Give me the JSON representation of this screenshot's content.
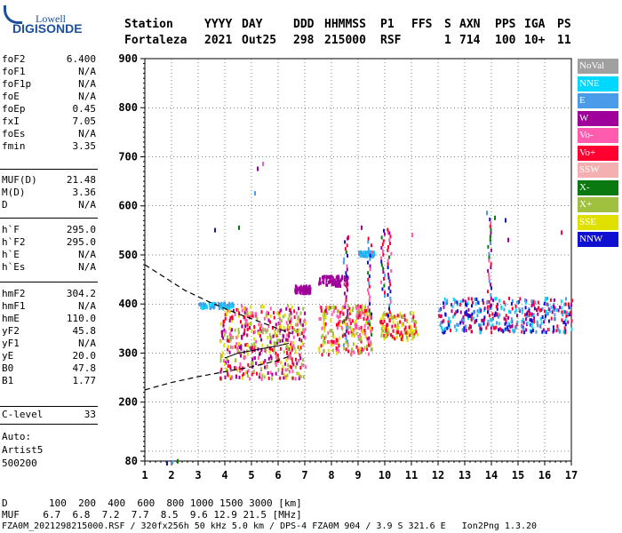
{
  "logo": {
    "top": "Lowell",
    "bottom": "DIGISONDE"
  },
  "header": {
    "labels": [
      "Station",
      "YYYY",
      "DAY",
      "DDD",
      "HHMMSS",
      "P1",
      "FFS",
      "S",
      "AXN",
      "PPS",
      "IGA",
      "PS"
    ],
    "values": [
      "Fortaleza",
      "2021",
      "Out25",
      "298",
      "215000",
      "RSF",
      "",
      "1",
      "714",
      "100",
      "10+",
      "11"
    ]
  },
  "params": [
    {
      "name": "foF2",
      "value": "6.400"
    },
    {
      "name": "foF1",
      "value": "N/A"
    },
    {
      "name": "foF1p",
      "value": "N/A"
    },
    {
      "name": "foE",
      "value": "N/A"
    },
    {
      "name": "foEp",
      "value": "0.45"
    },
    {
      "name": "fxI",
      "value": "7.05"
    },
    {
      "name": "foEs",
      "value": "N/A"
    },
    {
      "name": "fmin",
      "value": "3.35"
    },
    {
      "name": "MUF(D)",
      "value": "21.48"
    },
    {
      "name": "M(D)",
      "value": "3.36"
    },
    {
      "name": "D",
      "value": "N/A"
    },
    {
      "name": "h`F",
      "value": "295.0"
    },
    {
      "name": "h`F2",
      "value": "295.0"
    },
    {
      "name": "h`E",
      "value": "N/A"
    },
    {
      "name": "h`Es",
      "value": "N/A"
    },
    {
      "name": "hmF2",
      "value": "304.2"
    },
    {
      "name": "hmF1",
      "value": "N/A"
    },
    {
      "name": "hmE",
      "value": "110.0"
    },
    {
      "name": "yF2",
      "value": "45.8"
    },
    {
      "name": "yF1",
      "value": "N/A"
    },
    {
      "name": "yE",
      "value": "20.0"
    },
    {
      "name": "B0",
      "value": "47.8"
    },
    {
      "name": "B1",
      "value": "1.77"
    },
    {
      "name": "C-level",
      "value": "33"
    }
  ],
  "auto": {
    "line1": "Auto:",
    "line2": "Artist5",
    "line3": "500200"
  },
  "legend": [
    {
      "label": "NoVal",
      "color": "#a0a0a0"
    },
    {
      "label": "NNE",
      "color": "#00d8ff"
    },
    {
      "label": "E",
      "color": "#4a9be8"
    },
    {
      "label": "W",
      "color": "#a0009a"
    },
    {
      "label": "Vo-",
      "color": "#ff5cb0"
    },
    {
      "label": "Vo+",
      "color": "#ff0030"
    },
    {
      "label": "SSW",
      "color": "#f4b0b0"
    },
    {
      "label": "X-",
      "color": "#0a7a10"
    },
    {
      "label": "X+",
      "color": "#a0c040"
    },
    {
      "label": "SSE",
      "color": "#e0e000"
    },
    {
      "label": "NNW",
      "color": "#1010d0"
    }
  ],
  "footer": {
    "line1": "D       100  200  400  600  800 1000 1500 3000 [km]",
    "line2": "MUF    6.7  6.8  7.2  7.7  8.5  9.6 12.9 21.5 [MHz]",
    "line3": "FZA0M_2021298215000.RSF / 320fx256h 50 kHz 5.0 km / DPS-4 FZA0M 904 / 3.9 S 321.6 E   Ion2Png 1.3.20"
  },
  "chart_data": {
    "type": "scatter",
    "xlim": [
      1,
      17
    ],
    "ylim": [
      80,
      900
    ],
    "x_ticks": [
      "1",
      "2",
      "3",
      "4",
      "5",
      "6",
      "7",
      "8",
      "9",
      "10",
      "11",
      "12",
      "13",
      "14",
      "15",
      "16",
      "17"
    ],
    "y_ticks": [
      "80",
      "200",
      "300",
      "400",
      "500",
      "600",
      "700",
      "800",
      "900"
    ],
    "grid": true,
    "clusters": [
      {
        "x": [
          3.8,
          7.0
        ],
        "y": [
          250,
          400
        ],
        "colors": [
          "#ff0030",
          "#e0e000",
          "#a0c040",
          "#ff5cb0",
          "#a0009a"
        ]
      },
      {
        "x": [
          3.0,
          4.3
        ],
        "y": [
          395,
          405
        ],
        "colors": [
          "#4a9be8",
          "#00d8ff"
        ]
      },
      {
        "x": [
          6.6,
          7.2
        ],
        "y": [
          425,
          440
        ],
        "colors": [
          "#a0009a"
        ]
      },
      {
        "x": [
          7.5,
          9.5
        ],
        "y": [
          300,
          400
        ],
        "colors": [
          "#ff0030",
          "#e0e000",
          "#a0c040",
          "#ff5cb0"
        ]
      },
      {
        "x": [
          7.5,
          8.6
        ],
        "y": [
          440,
          460
        ],
        "colors": [
          "#a0009a"
        ]
      },
      {
        "x": [
          9.0,
          9.6
        ],
        "y": [
          500,
          510
        ],
        "colors": [
          "#4a9be8",
          "#00d8ff"
        ]
      },
      {
        "x": [
          9.8,
          11.2
        ],
        "y": [
          330,
          385
        ],
        "colors": [
          "#e0e000",
          "#a0c040",
          "#ff0030"
        ]
      },
      {
        "x": [
          12.0,
          17.0
        ],
        "y": [
          345,
          415
        ],
        "colors": [
          "#00d8ff",
          "#4a9be8",
          "#1010d0",
          "#a0009a",
          "#ff0030"
        ]
      }
    ],
    "curves": [
      {
        "points": [
          [
            1.0,
            480
          ],
          [
            2.5,
            428
          ],
          [
            3.5,
            402
          ],
          [
            4.5,
            380
          ],
          [
            5.5,
            360
          ],
          [
            6.5,
            340
          ]
        ]
      },
      {
        "points": [
          [
            1.0,
            225
          ],
          [
            2.0,
            240
          ],
          [
            3.0,
            252
          ],
          [
            4.0,
            262
          ],
          [
            5.0,
            272
          ],
          [
            6.0,
            285
          ],
          [
            6.5,
            295
          ]
        ]
      }
    ]
  }
}
